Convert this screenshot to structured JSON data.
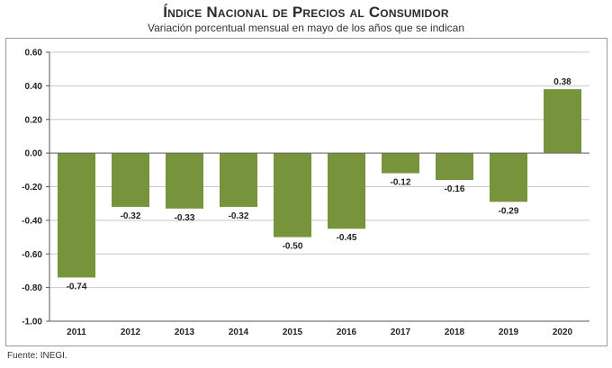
{
  "header": {
    "title": "Índice Nacional de Precios al Consumidor",
    "subtitle": "Variación porcentual mensual en mayo de los años que se indican"
  },
  "footer": {
    "source": "Fuente: INEGI."
  },
  "chart_data": {
    "type": "bar",
    "title": "Índice Nacional de Precios al Consumidor",
    "subtitle": "Variación porcentual mensual en mayo de los años que se indican",
    "xlabel": "",
    "ylabel": "",
    "categories": [
      "2011",
      "2012",
      "2013",
      "2014",
      "2015",
      "2016",
      "2017",
      "2018",
      "2019",
      "2020"
    ],
    "values": [
      -0.74,
      -0.32,
      -0.33,
      -0.32,
      -0.5,
      -0.45,
      -0.12,
      -0.16,
      -0.29,
      0.38
    ],
    "data_labels": [
      "-0.74",
      "-0.32",
      "-0.33",
      "-0.32",
      "-0.50",
      "-0.45",
      "-0.12",
      "-0.16",
      "-0.29",
      "0.38"
    ],
    "ylim": [
      -1.0,
      0.6
    ],
    "yticks": [
      0.6,
      0.4,
      0.2,
      0.0,
      -0.2,
      -0.4,
      -0.6,
      -0.8,
      -1.0
    ],
    "ytick_labels": [
      "0.60",
      "0.40",
      "0.20",
      "0.00",
      "-0.20",
      "-0.40",
      "-0.60",
      "-0.80",
      "-1.00"
    ],
    "grid": true,
    "legend": "none",
    "bar_color": "#77933c",
    "grid_color": "#c8c8c8"
  }
}
